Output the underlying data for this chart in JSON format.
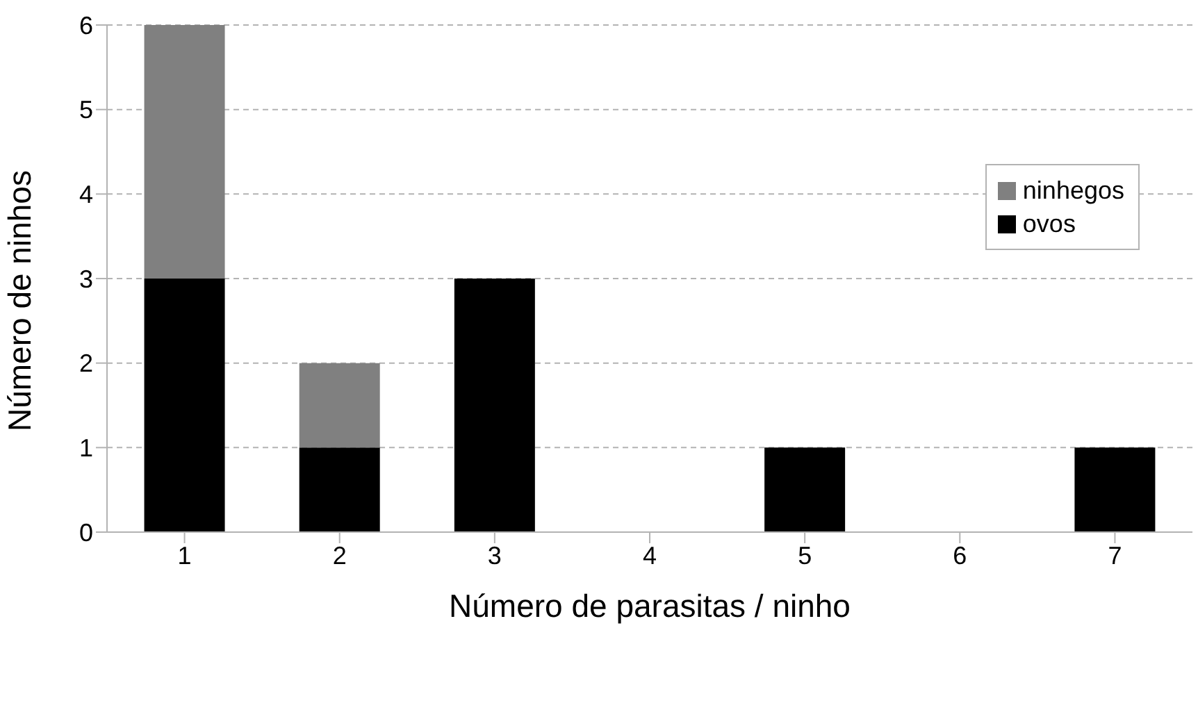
{
  "chart_data": {
    "type": "bar",
    "xlabel": "Número de parasitas / ninho",
    "ylabel": "Número de ninhos",
    "categories": [
      "1",
      "2",
      "3",
      "4",
      "5",
      "6",
      "7"
    ],
    "series": [
      {
        "name": "ovos",
        "color": "#000000",
        "values": [
          3,
          1,
          3,
          0,
          1,
          0,
          1
        ]
      },
      {
        "name": "ninhegos",
        "color": "#808080",
        "values": [
          3,
          1,
          0,
          0,
          0,
          0,
          0
        ]
      }
    ],
    "stacked": true,
    "ylim": [
      0,
      6
    ],
    "yticks": [
      0,
      1,
      2,
      3,
      4,
      5,
      6
    ],
    "grid": "y",
    "legend": "top right"
  }
}
